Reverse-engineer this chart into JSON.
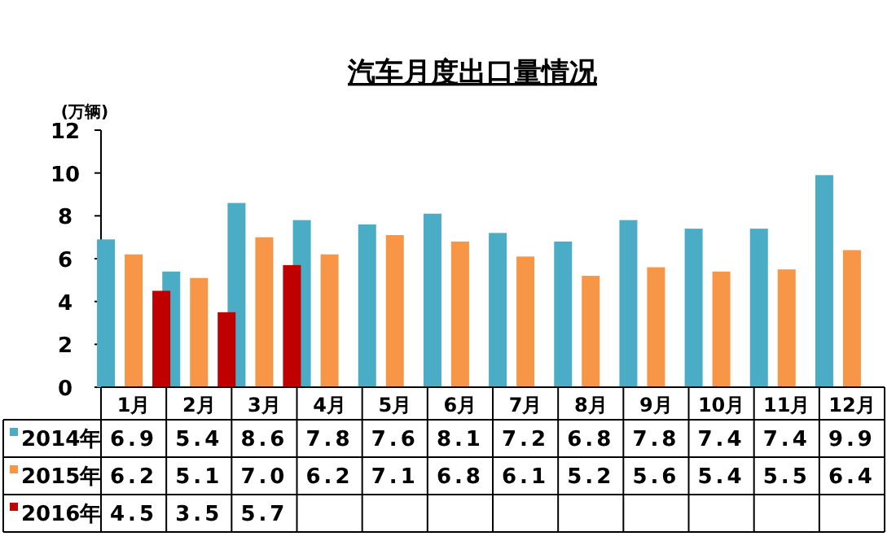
{
  "chart_data": {
    "type": "bar",
    "title": "汽车月度出口量情况",
    "ylabel": "(万辆)",
    "categories": [
      "1月",
      "2月",
      "3月",
      "4月",
      "5月",
      "6月",
      "7月",
      "8月",
      "9月",
      "10月",
      "11月",
      "12月"
    ],
    "series": [
      {
        "name": "2014年",
        "color": "#4bacc6",
        "values": [
          6.9,
          5.4,
          8.6,
          7.8,
          7.6,
          8.1,
          7.2,
          6.8,
          7.8,
          7.4,
          7.4,
          9.9
        ],
        "value_labels": [
          "6.9",
          "5.4",
          "8.6",
          "7.8",
          "7.6",
          "8.1",
          "7.2",
          "6.8",
          "7.8",
          "7.4",
          "7.4",
          "9.9"
        ]
      },
      {
        "name": "2015年",
        "color": "#f79646",
        "values": [
          6.2,
          5.1,
          7.0,
          6.2,
          7.1,
          6.8,
          6.1,
          5.2,
          5.6,
          5.4,
          5.5,
          6.4
        ],
        "value_labels": [
          "6.2",
          "5.1",
          "7.0",
          "6.2",
          "7.1",
          "6.8",
          "6.1",
          "5.2",
          "5.6",
          "5.4",
          "5.5",
          "6.4"
        ]
      },
      {
        "name": "2016年",
        "color": "#c00000",
        "values": [
          4.5,
          3.5,
          5.7,
          null,
          null,
          null,
          null,
          null,
          null,
          null,
          null,
          null
        ],
        "value_labels": [
          "4.5",
          "3.5",
          "5.7",
          null,
          null,
          null,
          null,
          null,
          null,
          null,
          null,
          null
        ]
      }
    ],
    "ylim": [
      0,
      12
    ],
    "yticks": [
      0,
      2,
      4,
      6,
      8,
      10,
      12
    ],
    "legend": "bottom",
    "grid": false
  }
}
